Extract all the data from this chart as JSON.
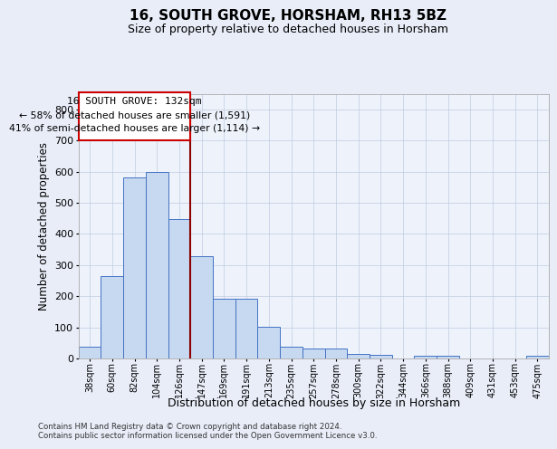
{
  "title": "16, SOUTH GROVE, HORSHAM, RH13 5BZ",
  "subtitle": "Size of property relative to detached houses in Horsham",
  "xlabel": "Distribution of detached houses by size in Horsham",
  "ylabel": "Number of detached properties",
  "bar_labels": [
    "38sqm",
    "60sqm",
    "82sqm",
    "104sqm",
    "126sqm",
    "147sqm",
    "169sqm",
    "191sqm",
    "213sqm",
    "235sqm",
    "257sqm",
    "278sqm",
    "300sqm",
    "322sqm",
    "344sqm",
    "366sqm",
    "388sqm",
    "409sqm",
    "431sqm",
    "453sqm",
    "475sqm"
  ],
  "bar_values": [
    38,
    263,
    580,
    598,
    448,
    328,
    193,
    192,
    103,
    38,
    33,
    33,
    15,
    12,
    0,
    8,
    8,
    0,
    0,
    0,
    8
  ],
  "bar_color": "#c6d9f0",
  "bar_edge_color": "#4472c4",
  "vline_color": "#8B0000",
  "vline_pos": 4.5,
  "annotation_title": "16 SOUTH GROVE: 132sqm",
  "annotation_line1": "← 58% of detached houses are smaller (1,591)",
  "annotation_line2": "41% of semi-detached houses are larger (1,114) →",
  "annotation_box_edge": "#cc0000",
  "ylim": [
    0,
    850
  ],
  "yticks": [
    0,
    100,
    200,
    300,
    400,
    500,
    600,
    700,
    800
  ],
  "bg_color": "#e8edf8",
  "plot_bg_color": "#eef3fb",
  "grid_color": "#c0cce0",
  "footnote1": "Contains HM Land Registry data © Crown copyright and database right 2024.",
  "footnote2": "Contains public sector information licensed under the Open Government Licence v3.0."
}
